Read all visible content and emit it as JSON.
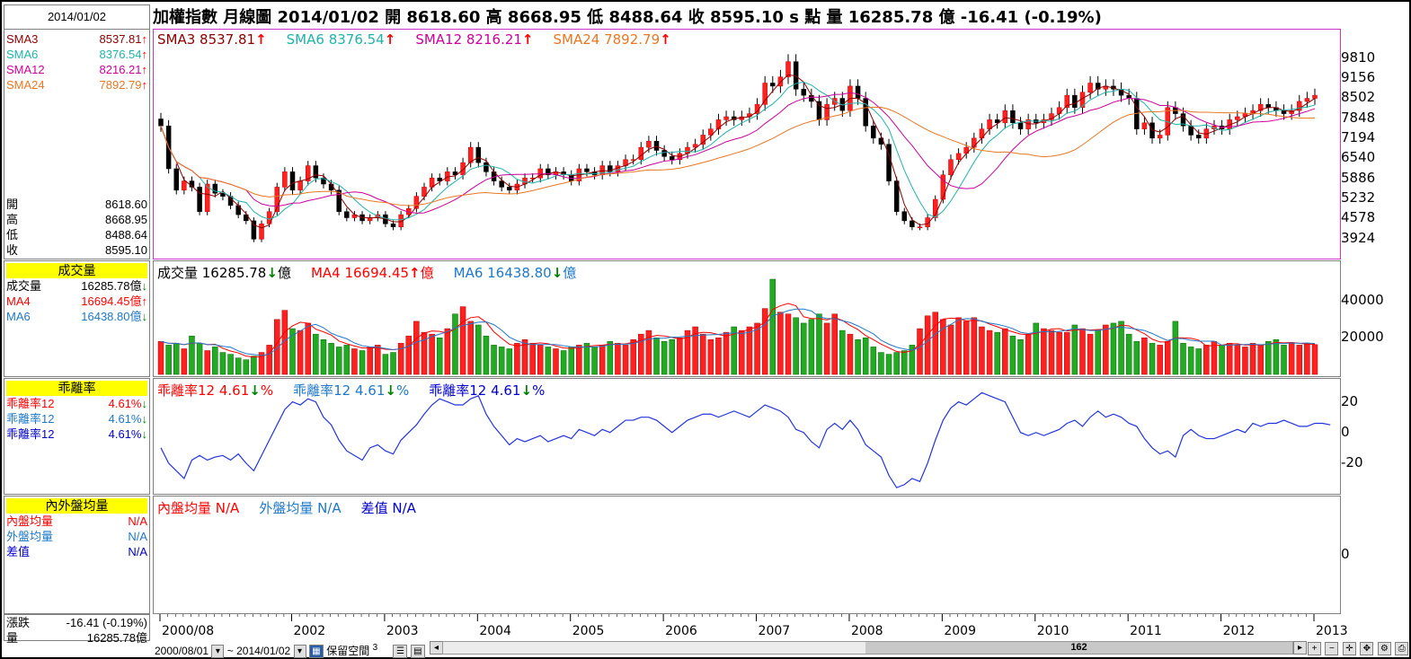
{
  "date_box": "2014/01/02",
  "title": "加權指數  月線圖  2014/01/02  開 8618.60  高 8668.95  低 8488.64  收 8595.10 s 點  量 16285.78 億  -16.41 (-0.19%)",
  "sma_list": [
    {
      "label": "SMA3",
      "value": "8537.81",
      "arrow": "↑",
      "color": "#8b0000"
    },
    {
      "label": "SMA6",
      "value": "8376.54",
      "arrow": "↑",
      "color": "#20b2aa"
    },
    {
      "label": "SMA12",
      "value": "8216.21",
      "arrow": "↑",
      "color": "#cc0099"
    },
    {
      "label": "SMA24",
      "value": "7892.79",
      "arrow": "↑",
      "color": "#e87722"
    }
  ],
  "ohlc": [
    {
      "label": "開",
      "value": "8618.60"
    },
    {
      "label": "高",
      "value": "8668.95"
    },
    {
      "label": "低",
      "value": "8488.64"
    },
    {
      "label": "收",
      "value": "8595.10"
    }
  ],
  "vol_header": "成交量",
  "vol_list": [
    {
      "label": "成交量",
      "value": "16285.78億",
      "arrow": "↓",
      "color": "#000000"
    },
    {
      "label": "MA4",
      "value": "16694.45億",
      "arrow": "↑",
      "color": "#ff0000"
    },
    {
      "label": "MA6",
      "value": "16438.80億",
      "arrow": "↓",
      "color": "#1e78c8"
    }
  ],
  "bias_header": "乖離率",
  "bias_list": [
    {
      "label": "乖離率12",
      "value": "4.61%",
      "arrow": "↓",
      "color": "#ff0000"
    },
    {
      "label": "乖離率12",
      "value": "4.61%",
      "arrow": "↓",
      "color": "#1e78c8"
    },
    {
      "label": "乖離率12",
      "value": "4.61%",
      "arrow": "↓",
      "color": "#0000cc"
    }
  ],
  "io_header": "內外盤均量",
  "io_list": [
    {
      "label": "內盤均量",
      "value": "N/A",
      "color": "#ff0000"
    },
    {
      "label": "外盤均量",
      "value": "N/A",
      "color": "#1e78c8"
    },
    {
      "label": "差值",
      "value": "N/A",
      "color": "#0000cc"
    }
  ],
  "change": {
    "label": "漲跌",
    "value": "-16.41 (-0.19%)"
  },
  "volume": {
    "label": "量",
    "value": "16285.78億"
  },
  "main_legend": [
    {
      "text": "SMA3 8537.81",
      "arrow": "↑",
      "color": "#8b0000"
    },
    {
      "text": "SMA6 8376.54",
      "arrow": "↑",
      "color": "#20b2aa"
    },
    {
      "text": "SMA12 8216.21",
      "arrow": "↑",
      "color": "#cc0099"
    },
    {
      "text": "SMA24 7892.79",
      "arrow": "↑",
      "color": "#e87722"
    }
  ],
  "vol_legend": [
    {
      "text": "成交量 16285.78",
      "arrow": "↓",
      "suffix": "億",
      "color": "#000000"
    },
    {
      "text": "MA4 16694.45",
      "arrow": "↑",
      "suffix": "億",
      "color": "#ff0000"
    },
    {
      "text": "MA6 16438.80",
      "arrow": "↓",
      "suffix": "億",
      "color": "#1e78c8"
    }
  ],
  "bias_legend": [
    {
      "text": "乖離率12 4.61",
      "arrow": "↓",
      "suffix": "%",
      "color": "#ff0000"
    },
    {
      "text": "乖離率12 4.61",
      "arrow": "↓",
      "suffix": "%",
      "color": "#1e78c8"
    },
    {
      "text": "乖離率12 4.61",
      "arrow": "↓",
      "suffix": "%",
      "color": "#0000cc"
    }
  ],
  "io_legend": [
    {
      "text": "內盤均量 N/A",
      "color": "#ff0000"
    },
    {
      "text": "外盤均量 N/A",
      "color": "#1e78c8"
    },
    {
      "text": "差值 N/A",
      "color": "#0000cc"
    }
  ],
  "bottom_bar": {
    "from": "2000/08/01",
    "to": "2014/01/02",
    "keep_space": "保留空間",
    "keep_num": "3",
    "scroll_value": "162"
  },
  "chart_data": [
    {
      "type": "candlestick",
      "title": "加權指數 月線圖",
      "x_ticks": [
        "2000/08",
        "2002",
        "2003",
        "2004",
        "2005",
        "2006",
        "2007",
        "2008",
        "2009",
        "2010",
        "2011",
        "2012",
        "2013"
      ],
      "x_tick_months": [
        0,
        17,
        29,
        41,
        53,
        65,
        77,
        89,
        101,
        113,
        125,
        137,
        149
      ],
      "y_ticks": [
        3924,
        4578,
        5232,
        5886,
        6540,
        7194,
        7848,
        8502,
        9156,
        9810
      ],
      "ylim": [
        3500,
        10100
      ],
      "closes": [
        7600,
        6200,
        5500,
        5800,
        5600,
        4800,
        5700,
        5400,
        5300,
        5000,
        4700,
        4500,
        3900,
        4400,
        4800,
        5600,
        6100,
        5500,
        5800,
        6300,
        5900,
        5700,
        5500,
        4800,
        4600,
        4700,
        4500,
        4600,
        4700,
        4400,
        4300,
        4700,
        4900,
        5300,
        5600,
        5900,
        5800,
        6100,
        6000,
        6400,
        6900,
        6400,
        6100,
        5800,
        5600,
        5500,
        5700,
        5900,
        5900,
        6200,
        6000,
        6100,
        6000,
        5800,
        6200,
        6100,
        6000,
        6300,
        6100,
        6300,
        6500,
        6500,
        6900,
        7100,
        6800,
        6600,
        6500,
        6700,
        6900,
        7000,
        7300,
        7500,
        7800,
        7900,
        7800,
        7900,
        8000,
        8300,
        9000,
        8900,
        9200,
        9700,
        8800,
        8600,
        8400,
        7800,
        8300,
        8500,
        8100,
        8900,
        8500,
        7600,
        7200,
        7000,
        5800,
        4800,
        4500,
        4300,
        4300,
        4600,
        5200,
        6000,
        6500,
        6700,
        6900,
        7200,
        7500,
        7800,
        7700,
        8100,
        7700,
        7500,
        7800,
        7700,
        7800,
        8000,
        8200,
        8600,
        8200,
        8700,
        9000,
        8800,
        8900,
        8800,
        8600,
        8500,
        7500,
        7700,
        7200,
        7300,
        8200,
        8000,
        7600,
        7300,
        7200,
        7500,
        7600,
        7500,
        7800,
        7900,
        8000,
        8100,
        8300,
        8200,
        8100,
        8000,
        8100,
        8400,
        8500,
        8600
      ]
    },
    {
      "type": "bar",
      "title": "成交量",
      "y_ticks": [
        20000,
        40000
      ],
      "ylim": [
        0,
        52000
      ],
      "values": [
        18000,
        16000,
        17000,
        14000,
        21000,
        17000,
        13000,
        15000,
        12000,
        11000,
        9000,
        8000,
        10000,
        12000,
        16000,
        30000,
        35000,
        25000,
        24000,
        28000,
        22000,
        19000,
        17000,
        15000,
        16000,
        14000,
        13000,
        15000,
        16000,
        11000,
        12000,
        17000,
        21000,
        29000,
        23000,
        22000,
        20000,
        25000,
        33000,
        37000,
        29000,
        27000,
        21000,
        16000,
        15000,
        14000,
        17000,
        19000,
        17000,
        16000,
        15000,
        14000,
        13000,
        15000,
        16000,
        17000,
        15000,
        16000,
        18000,
        17000,
        16000,
        19000,
        22000,
        24000,
        20000,
        18000,
        19000,
        20000,
        24000,
        26000,
        22000,
        19000,
        20000,
        23000,
        26000,
        24000,
        26000,
        28000,
        36000,
        52000,
        34000,
        33000,
        31000,
        28000,
        30000,
        33000,
        28000,
        33000,
        24000,
        22000,
        19000,
        20000,
        15000,
        12000,
        11000,
        12000,
        13000,
        16000,
        25000,
        32000,
        34000,
        30000,
        27000,
        31000,
        29000,
        31000,
        26000,
        24000,
        23000,
        25000,
        21000,
        19000,
        22000,
        28000,
        25000,
        24000,
        23000,
        23000,
        27000,
        25000,
        22000,
        24000,
        27000,
        28000,
        29000,
        22000,
        18000,
        20000,
        17000,
        16000,
        18000,
        29000,
        17000,
        15000,
        14000,
        16000,
        18000,
        16000,
        17000,
        16000,
        15000,
        17000,
        16000,
        18000,
        19000,
        16000,
        17000,
        16000,
        17000,
        16286
      ]
    },
    {
      "type": "line",
      "title": "乖離率",
      "y_ticks": [
        -20,
        0,
        20
      ],
      "ylim": [
        -40,
        35
      ],
      "values": [
        -10,
        -20,
        -25,
        -30,
        -18,
        -15,
        -18,
        -16,
        -15,
        -18,
        -14,
        -20,
        -25,
        -15,
        -5,
        5,
        15,
        20,
        18,
        22,
        20,
        10,
        5,
        -5,
        -12,
        -15,
        -18,
        -10,
        -8,
        -12,
        -14,
        -5,
        0,
        5,
        12,
        18,
        22,
        20,
        18,
        18,
        22,
        24,
        12,
        4,
        -2,
        -8,
        -4,
        -6,
        -4,
        -2,
        -6,
        -4,
        -2,
        -4,
        2,
        0,
        -2,
        2,
        0,
        4,
        8,
        8,
        10,
        10,
        8,
        4,
        0,
        4,
        8,
        10,
        12,
        12,
        10,
        12,
        14,
        12,
        10,
        14,
        18,
        16,
        14,
        10,
        2,
        0,
        -6,
        -10,
        2,
        6,
        2,
        8,
        2,
        -8,
        -12,
        -16,
        -28,
        -36,
        -34,
        -30,
        -32,
        -20,
        -5,
        8,
        16,
        20,
        18,
        22,
        26,
        24,
        22,
        20,
        10,
        0,
        -2,
        0,
        -2,
        0,
        2,
        6,
        8,
        4,
        10,
        14,
        10,
        12,
        10,
        6,
        4,
        -4,
        -10,
        -14,
        -12,
        -16,
        -2,
        2,
        -2,
        -4,
        -4,
        -2,
        0,
        2,
        0,
        6,
        4,
        6,
        6,
        8,
        6,
        4,
        4,
        6,
        6,
        5
      ]
    },
    {
      "type": "line",
      "title": "內外盤均量",
      "y_ticks": [
        0
      ],
      "values": []
    }
  ]
}
